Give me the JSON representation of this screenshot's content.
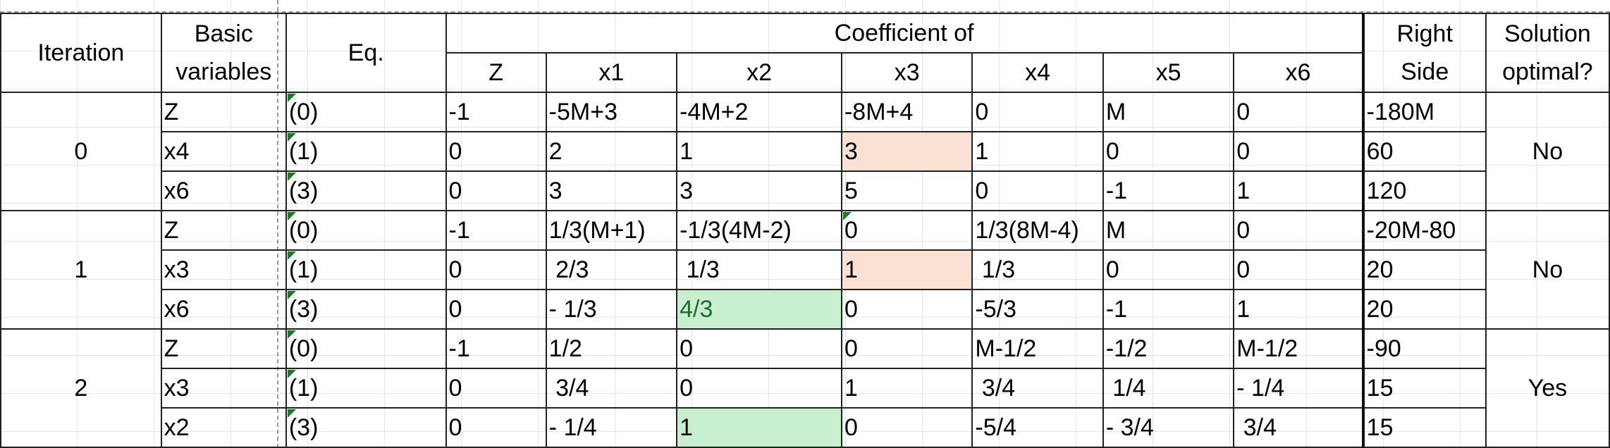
{
  "headers": {
    "iteration": "Iteration",
    "basic_variables": [
      "Basic",
      "variables"
    ],
    "eq": "Eq.",
    "coefficient_of": "Coefficient of",
    "columns": [
      "Z",
      "x1",
      "x2",
      "x3",
      "x4",
      "x5",
      "x6"
    ],
    "right_side": [
      "Right",
      "Side"
    ],
    "solution_optimal": [
      "Solution",
      "optimal?"
    ]
  },
  "iterations": [
    {
      "iteration": "0",
      "optimal": "No",
      "rows": [
        {
          "basic": "Z",
          "eq": "(0)",
          "coef": [
            "-1",
            "-5M+3",
            "-4M+2",
            "-8M+4",
            "0",
            "M",
            "0"
          ],
          "rhs": "-180M"
        },
        {
          "basic": "x4",
          "eq": "(1)",
          "coef": [
            "0",
            "2",
            "1",
            "3",
            "1",
            "0",
            "0"
          ],
          "rhs": "60"
        },
        {
          "basic": "x6",
          "eq": "(3)",
          "coef": [
            "0",
            "3",
            "3",
            "5",
            "0",
            "-1",
            "1"
          ],
          "rhs": "120"
        }
      ]
    },
    {
      "iteration": "1",
      "optimal": "No",
      "rows": [
        {
          "basic": "Z",
          "eq": "(0)",
          "coef": [
            "-1",
            "1/3(M+1)",
            "-1/3(4M-2)",
            "0",
            "1/3(8M-4)",
            "M",
            "0"
          ],
          "rhs": "-20M-80"
        },
        {
          "basic": "x3",
          "eq": "(1)",
          "coef": [
            "0",
            " 2/3",
            " 1/3",
            "1",
            " 1/3",
            "0",
            "0"
          ],
          "rhs": "20"
        },
        {
          "basic": "x6",
          "eq": "(3)",
          "coef": [
            "0",
            "- 1/3",
            "4/3",
            "0",
            "-5/3",
            "-1",
            "1"
          ],
          "rhs": "20"
        }
      ]
    },
    {
      "iteration": "2",
      "optimal": "Yes",
      "rows": [
        {
          "basic": "Z",
          "eq": "(0)",
          "coef": [
            "-1",
            "1/2",
            "0",
            "0",
            "M-1/2",
            "-1/2",
            "M-1/2"
          ],
          "rhs": "-90"
        },
        {
          "basic": "x3",
          "eq": "(1)",
          "coef": [
            "0",
            " 3/4",
            "0",
            "1",
            " 3/4",
            " 1/4",
            "- 1/4"
          ],
          "rhs": "15"
        },
        {
          "basic": "x2",
          "eq": "(3)",
          "coef": [
            "0",
            "- 1/4",
            "1",
            "0",
            "-5/4",
            "- 3/4",
            " 3/4"
          ],
          "rhs": "15"
        }
      ]
    }
  ],
  "highlight_colors": {
    "pivot_column": "#fbe0d4",
    "pivot_element": "#c8efcf",
    "pivot_text": "#1e6b2b"
  }
}
